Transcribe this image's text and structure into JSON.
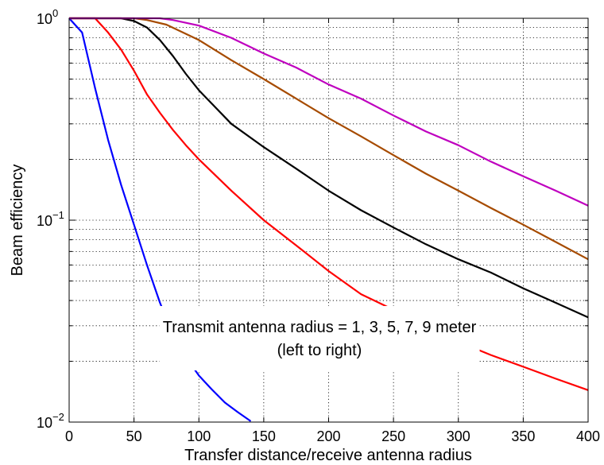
{
  "chart_data": {
    "type": "line",
    "title": "",
    "xlabel": "Transfer distance/receive antenna radius",
    "ylabel": "Beam efficiency",
    "xlim": [
      0,
      400
    ],
    "ylim": [
      0.01,
      1
    ],
    "yscale": "log",
    "grid": true,
    "x_ticks": [
      0,
      50,
      100,
      150,
      200,
      250,
      300,
      350,
      400
    ],
    "x_tick_labels": [
      "0",
      "50",
      "100",
      "150",
      "200",
      "250",
      "300",
      "350",
      "400"
    ],
    "y_ticks": [
      0.01,
      0.1,
      1
    ],
    "y_tick_labels": [
      {
        "base": "10",
        "exp": "−2"
      },
      {
        "base": "10",
        "exp": "−1"
      },
      {
        "base": "10",
        "exp": "0"
      }
    ],
    "annotation": [
      "Transmit antenna radius = 1, 3, 5, 7, 9 meter",
      "(left to right)"
    ],
    "series": [
      {
        "color": "#0000ff",
        "points": [
          [
            0,
            1.0
          ],
          [
            10,
            0.85
          ],
          [
            20,
            0.45
          ],
          [
            30,
            0.25
          ],
          [
            40,
            0.15
          ],
          [
            50,
            0.095
          ],
          [
            60,
            0.06
          ],
          [
            70,
            0.039
          ],
          [
            80,
            0.027
          ],
          [
            90,
            0.021
          ],
          [
            100,
            0.017
          ],
          [
            110,
            0.0145
          ],
          [
            120,
            0.0125
          ],
          [
            130,
            0.0112
          ],
          [
            140,
            0.0101
          ]
        ]
      },
      {
        "color": "#ff0000",
        "points": [
          [
            0,
            1.0
          ],
          [
            20,
            1.0
          ],
          [
            30,
            0.85
          ],
          [
            40,
            0.7
          ],
          [
            50,
            0.55
          ],
          [
            60,
            0.42
          ],
          [
            70,
            0.34
          ],
          [
            80,
            0.28
          ],
          [
            90,
            0.235
          ],
          [
            100,
            0.2
          ],
          [
            125,
            0.14
          ],
          [
            150,
            0.1
          ],
          [
            175,
            0.075
          ],
          [
            200,
            0.056
          ],
          [
            225,
            0.043
          ],
          [
            250,
            0.036
          ],
          [
            275,
            0.029
          ],
          [
            300,
            0.025
          ],
          [
            325,
            0.0215
          ],
          [
            350,
            0.0188
          ],
          [
            375,
            0.0164
          ],
          [
            400,
            0.0144
          ]
        ]
      },
      {
        "color": "#000000",
        "points": [
          [
            0,
            1.0
          ],
          [
            40,
            1.0
          ],
          [
            50,
            0.97
          ],
          [
            60,
            0.9
          ],
          [
            70,
            0.78
          ],
          [
            80,
            0.65
          ],
          [
            90,
            0.53
          ],
          [
            100,
            0.44
          ],
          [
            125,
            0.3
          ],
          [
            150,
            0.23
          ],
          [
            175,
            0.18
          ],
          [
            200,
            0.14
          ],
          [
            225,
            0.112
          ],
          [
            250,
            0.092
          ],
          [
            275,
            0.076
          ],
          [
            300,
            0.064
          ],
          [
            325,
            0.055
          ],
          [
            350,
            0.046
          ],
          [
            375,
            0.039
          ],
          [
            400,
            0.033
          ]
        ]
      },
      {
        "color": "#a64b00",
        "points": [
          [
            0,
            1.0
          ],
          [
            50,
            1.0
          ],
          [
            60,
            0.98
          ],
          [
            75,
            0.93
          ],
          [
            100,
            0.78
          ],
          [
            125,
            0.62
          ],
          [
            150,
            0.5
          ],
          [
            175,
            0.4
          ],
          [
            200,
            0.32
          ],
          [
            225,
            0.26
          ],
          [
            250,
            0.21
          ],
          [
            275,
            0.17
          ],
          [
            300,
            0.14
          ],
          [
            325,
            0.115
          ],
          [
            350,
            0.095
          ],
          [
            375,
            0.078
          ],
          [
            400,
            0.064
          ]
        ]
      },
      {
        "color": "#bf00bf",
        "points": [
          [
            0,
            1.0
          ],
          [
            70,
            1.0
          ],
          [
            80,
            0.98
          ],
          [
            100,
            0.92
          ],
          [
            125,
            0.8
          ],
          [
            150,
            0.67
          ],
          [
            175,
            0.57
          ],
          [
            200,
            0.47
          ],
          [
            225,
            0.4
          ],
          [
            250,
            0.33
          ],
          [
            275,
            0.275
          ],
          [
            300,
            0.235
          ],
          [
            325,
            0.195
          ],
          [
            350,
            0.165
          ],
          [
            375,
            0.14
          ],
          [
            400,
            0.118
          ]
        ]
      }
    ]
  }
}
